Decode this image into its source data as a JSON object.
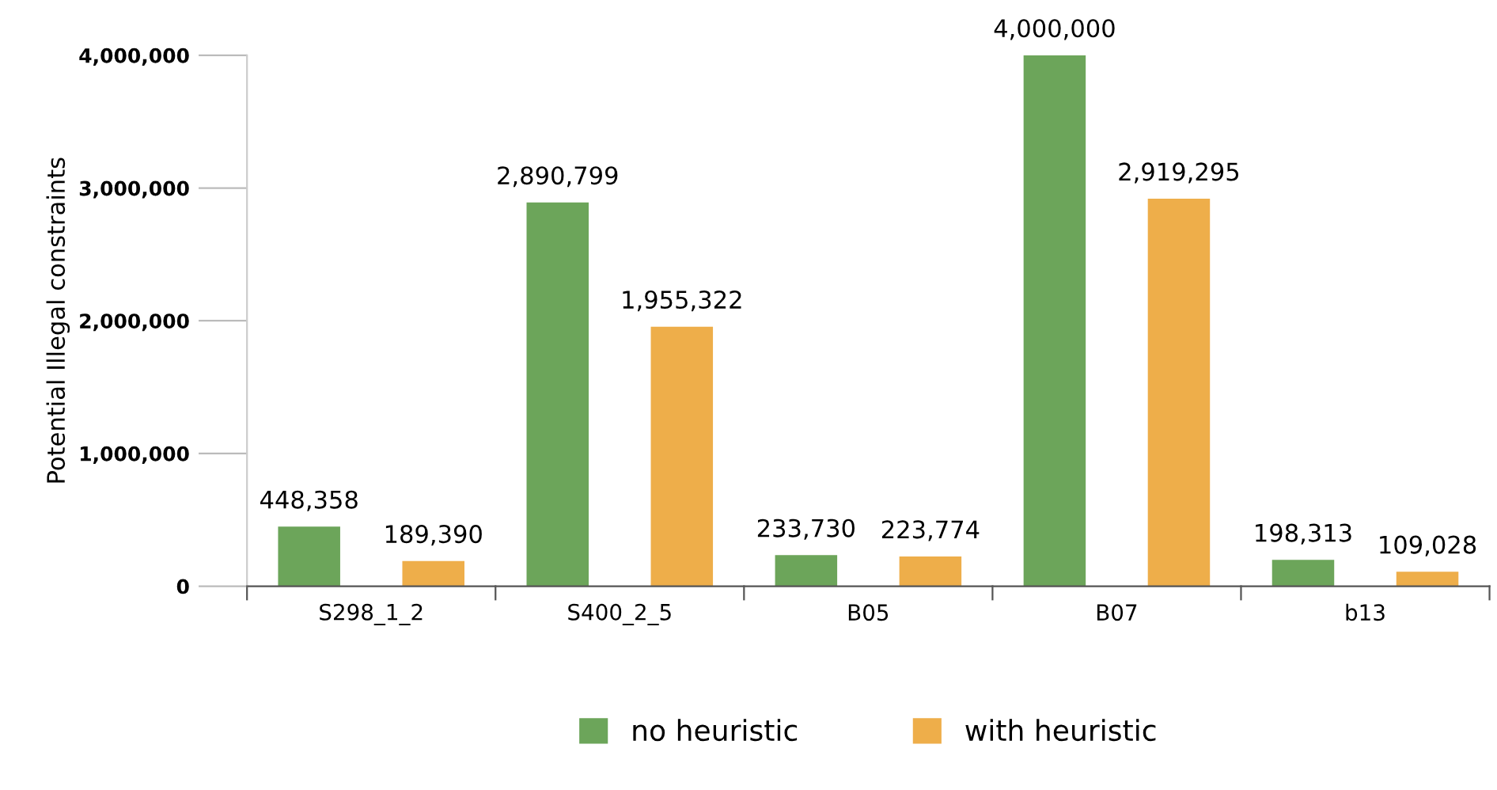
{
  "chart_data": {
    "type": "bar",
    "ylabel": "Potential Illegal constraints",
    "categories": [
      "S298_1_2",
      "S400_2_5",
      "B05",
      "B07",
      "b13"
    ],
    "series": [
      {
        "name": "no heuristic",
        "color": "#6ca55a",
        "values": [
          448358,
          2890799,
          233730,
          4000000,
          198313
        ],
        "value_labels": [
          "448,358",
          "2,890,799",
          "233,730",
          "4,000,000",
          "198,313"
        ]
      },
      {
        "name": "with heuristic",
        "color": "#eeae4a",
        "values": [
          189390,
          1955322,
          223774,
          2919295,
          109028
        ],
        "value_labels": [
          "189,390",
          "1,955,322",
          "223,774",
          "2,919,295",
          "109,028"
        ]
      }
    ],
    "ylim": [
      0,
      4000000
    ],
    "yticks": [
      {
        "value": 0,
        "label": "0"
      },
      {
        "value": 1000000,
        "label": "1,000,000"
      },
      {
        "value": 2000000,
        "label": "2,000,000"
      },
      {
        "value": 3000000,
        "label": "3,000,000"
      },
      {
        "value": 4000000,
        "label": "4,000,000"
      }
    ],
    "grid": false,
    "legend": "bottom"
  }
}
